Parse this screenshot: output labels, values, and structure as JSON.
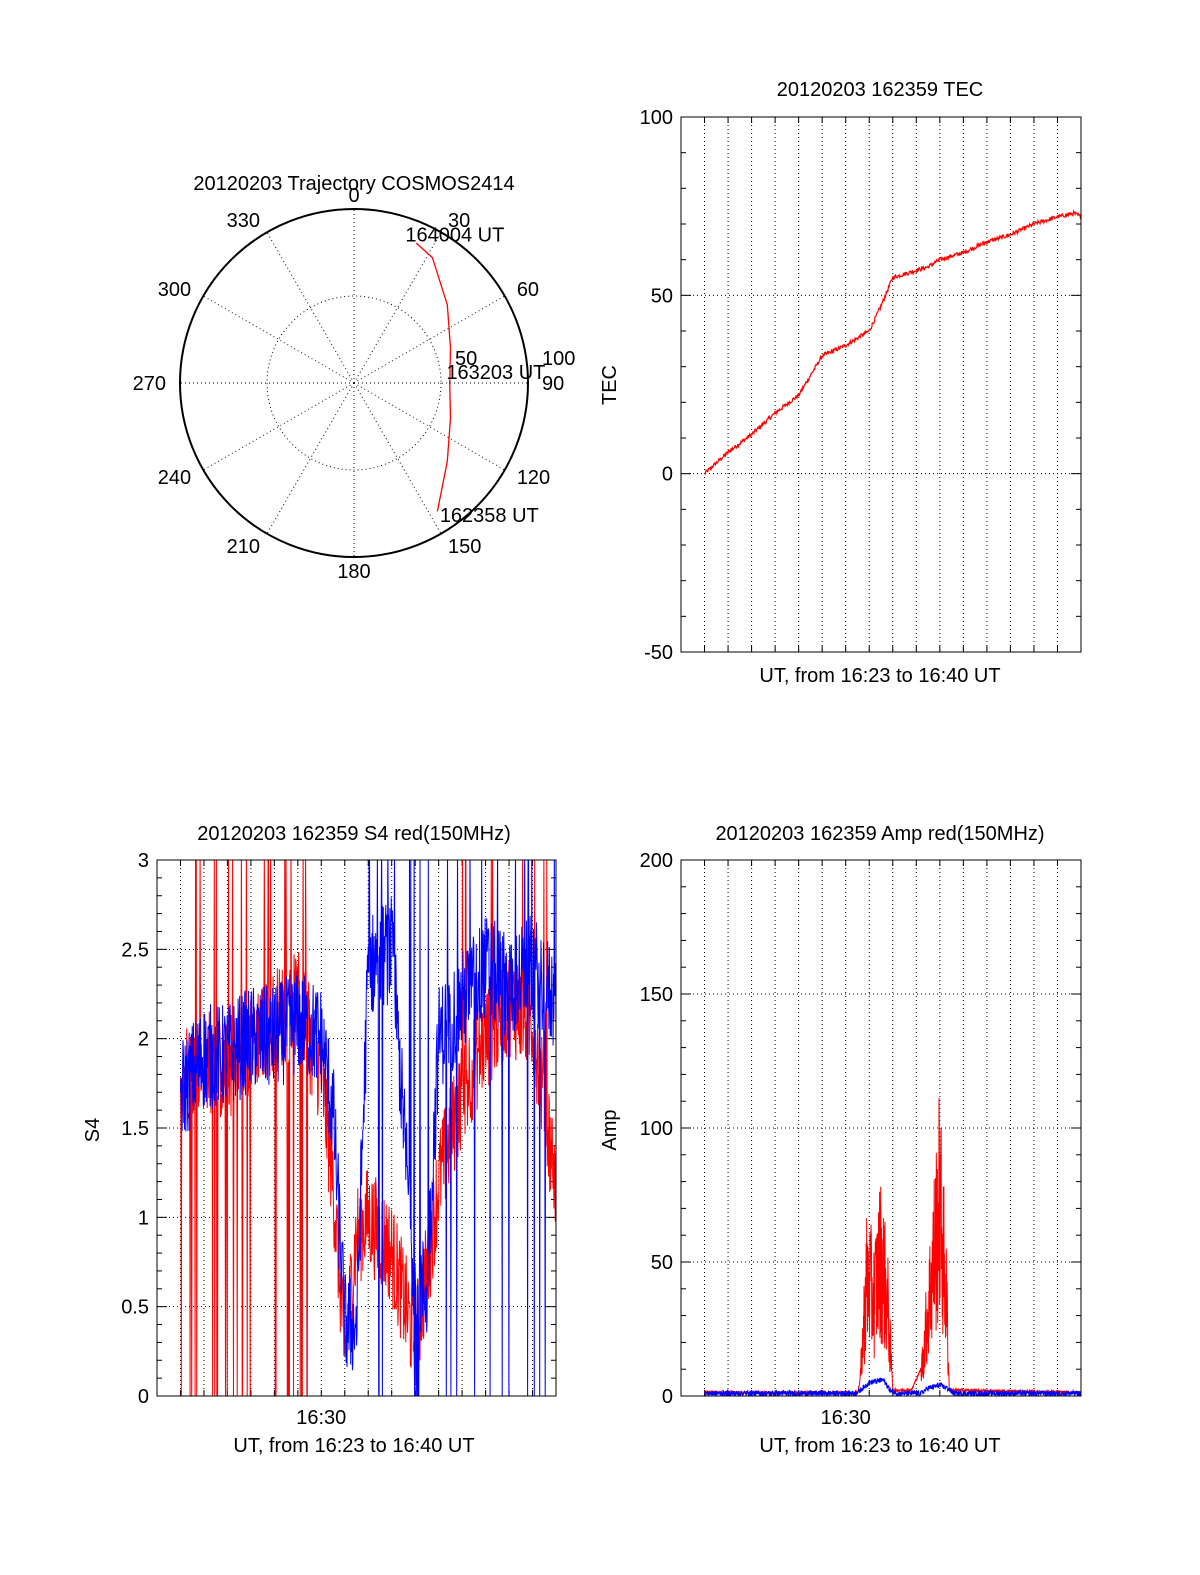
{
  "colors": {
    "red": "#ff0000",
    "blue": "#0000ff",
    "axis": "#000000",
    "background": "#ffffff"
  },
  "chart_data": [
    {
      "type": "polar",
      "title": "20120203 Trajectory COSMOS2414",
      "azimuth_labels": [
        "0",
        "30",
        "60",
        "90",
        "120",
        "150",
        "180",
        "210",
        "240",
        "270",
        "300",
        "330"
      ],
      "radial_labels": [
        "50",
        "100"
      ],
      "grid": true,
      "series": [
        {
          "color": "#ff0000",
          "points": [
            {
              "az": 147,
              "r": 88
            },
            {
              "az": 130,
              "r": 70
            },
            {
              "az": 110,
              "r": 59
            },
            {
              "az": 90,
              "r": 55
            },
            {
              "az": 70,
              "r": 59
            },
            {
              "az": 50,
              "r": 70
            },
            {
              "az": 32,
              "r": 85
            },
            {
              "az": 24,
              "r": 88
            }
          ]
        }
      ],
      "annotations": [
        {
          "text": "164004 UT",
          "az": 21,
          "r": 92
        },
        {
          "text": "163203 UT",
          "az": 83,
          "r": 57
        },
        {
          "text": "162358 UT",
          "az": 145,
          "r": 92
        }
      ]
    },
    {
      "type": "line",
      "title": "20120203 162359 TEC",
      "xlabel": "UT, from 16:23 to 16:40 UT",
      "ylabel": "TEC",
      "xlim": [
        0,
        17
      ],
      "ylim": [
        -50,
        100
      ],
      "yticks": [
        "-50",
        "0",
        "50",
        "100"
      ],
      "grid": true,
      "series": [
        {
          "color": "#ff0000",
          "x": [
            1.0,
            2.0,
            3.0,
            4.0,
            5.0,
            6.0,
            7.0,
            8.0,
            8.5,
            9.0,
            10.0,
            10.5,
            11.0,
            12.0,
            13.0,
            14.0,
            15.0,
            16.0,
            16.7,
            17.0
          ],
          "y": [
            0,
            6,
            11,
            17,
            22,
            33,
            36,
            40,
            47,
            55,
            57,
            58,
            60,
            62,
            65,
            67,
            70,
            72,
            73,
            72
          ]
        }
      ]
    },
    {
      "type": "line",
      "title": "20120203 162359 S4 red(150MHz)",
      "xlabel": "UT, from 16:23 to 16:40 UT",
      "ylabel": "S4",
      "xtick_labels": [
        "16:30"
      ],
      "xlim": [
        0,
        17
      ],
      "ylim": [
        0,
        3
      ],
      "yticks": [
        "0",
        "0.5",
        "1",
        "1.5",
        "2",
        "2.5",
        "3"
      ],
      "grid": true,
      "series": [
        {
          "color": "#ff0000",
          "x": [
            1.0,
            2.0,
            3.0,
            4.0,
            5.0,
            6.0,
            7.0,
            7.5,
            8.0,
            8.5,
            9.0,
            10.0,
            11.0,
            11.5,
            12.0,
            13.0,
            14.0,
            15.0,
            16.0,
            17.0
          ],
          "y": [
            1.8,
            1.9,
            1.8,
            2.0,
            2.1,
            2.2,
            1.8,
            1.2,
            0.25,
            0.9,
            1.0,
            0.8,
            0.3,
            0.7,
            1.2,
            1.7,
            2.0,
            2.2,
            2.1,
            1.2
          ]
        },
        {
          "color": "#0000ff",
          "x": [
            1.0,
            2.0,
            3.0,
            4.0,
            5.0,
            6.0,
            7.0,
            7.5,
            8.0,
            8.5,
            9.0,
            10.0,
            11.0,
            11.5,
            12.0,
            13.0,
            14.0,
            15.0,
            16.0,
            17.0
          ],
          "y": [
            1.7,
            1.9,
            1.9,
            2.0,
            2.0,
            2.1,
            2.0,
            1.6,
            0.4,
            0.4,
            2.4,
            2.5,
            0.6,
            0.6,
            2.0,
            2.2,
            2.4,
            2.3,
            2.4,
            2.2
          ]
        }
      ]
    },
    {
      "type": "line",
      "title": "20120203 162359 Amp red(150MHz)",
      "xlabel": "UT, from 16:23 to 16:40 UT",
      "ylabel": "Amp",
      "xtick_labels": [
        "16:30"
      ],
      "xlim": [
        0,
        17
      ],
      "ylim": [
        0,
        200
      ],
      "yticks": [
        "0",
        "50",
        "100",
        "150",
        "200"
      ],
      "grid": true,
      "series": [
        {
          "color": "#ff0000",
          "x": [
            1.0,
            7.5,
            7.6,
            7.9,
            8.2,
            8.5,
            8.8,
            9.0,
            9.8,
            10.2,
            10.7,
            11.0,
            11.3,
            11.4,
            17.0
          ],
          "y": [
            1,
            1,
            5,
            55,
            45,
            65,
            40,
            2,
            2,
            10,
            60,
            90,
            40,
            2,
            1
          ]
        },
        {
          "color": "#0000ff",
          "x": [
            1.0,
            7.4,
            7.6,
            8.0,
            8.6,
            8.9,
            9.2,
            10.2,
            10.5,
            11.0,
            11.3,
            11.6,
            17.0
          ],
          "y": [
            1,
            1,
            2,
            5,
            6,
            2,
            1,
            1,
            3,
            4,
            3,
            1,
            1
          ]
        }
      ]
    }
  ]
}
